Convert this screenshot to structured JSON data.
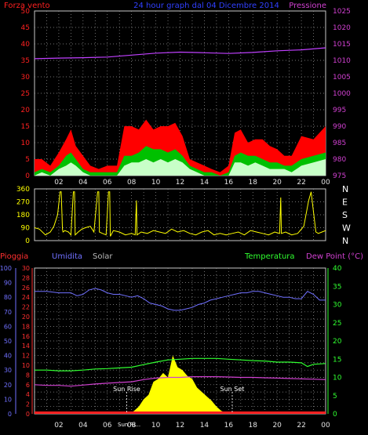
{
  "header": {
    "left_title": "Forza vento",
    "center_title": "24 hour graph dal 04 Dicembre 2014",
    "right_title": "Pressione"
  },
  "colors": {
    "background": "#000000",
    "grid": "#9a9a9a",
    "wind_axis": "#ff2020",
    "pressure_axis": "#d040d0",
    "wind_gust": "#ff0000",
    "wind_avg": "#00c000",
    "wind_min": "#c8ffc8",
    "pressure": "#c040ff",
    "direction": "#ffff00",
    "rain": "#ff3030",
    "humidity": "#7070ff",
    "solar": "#ffff00",
    "temperature": "#30ff30",
    "dewpoint": "#d040d0",
    "label_solar": "#b8b8b8",
    "label_temp": "#30ff30"
  },
  "chart_data": [
    {
      "type": "area",
      "title": "24 hour graph dal 04 Dicembre 2014",
      "x_ticks": [
        "02",
        "04",
        "06",
        "08",
        "10",
        "12",
        "14",
        "16",
        "18",
        "20",
        "22",
        "00"
      ],
      "y_left": {
        "label": "Forza vento",
        "range": [
          0,
          50
        ],
        "ticks": [
          "0",
          "5",
          "10",
          "15",
          "20",
          "25",
          "30",
          "35",
          "40",
          "45",
          "50"
        ]
      },
      "y_right": {
        "label": "Pressione",
        "range": [
          975,
          1025
        ],
        "ticks": [
          "975",
          "980",
          "985",
          "990",
          "995",
          "1000",
          "1005",
          "1010",
          "1015",
          "1020",
          "1025"
        ]
      },
      "series": [
        {
          "name": "Pressione",
          "x": [
            0,
            2,
            4,
            6,
            8,
            10,
            12,
            14,
            16,
            18,
            20,
            22,
            24
          ],
          "values": [
            1010.5,
            1010.7,
            1010.8,
            1011.0,
            1011.6,
            1012.2,
            1012.5,
            1012.3,
            1012.1,
            1012.4,
            1012.9,
            1013.2,
            1013.8
          ]
        },
        {
          "values": [
            5,
            5,
            3,
            7,
            11,
            14,
            9,
            6,
            3,
            2,
            3,
            3,
            15,
            15,
            14,
            17,
            14,
            15,
            15,
            16,
            12,
            5,
            4,
            3,
            2,
            1,
            3,
            13,
            14,
            10,
            11,
            11,
            9,
            8,
            6,
            6,
            12,
            11,
            15
          ]
        },
        {
          "values": [
            1,
            2,
            1,
            3,
            6,
            7,
            5,
            2,
            1,
            1,
            1,
            1,
            6,
            6,
            7,
            9,
            8,
            8,
            7,
            8,
            6,
            3,
            2,
            1,
            1,
            0,
            1,
            6,
            7,
            6,
            6,
            5,
            4,
            4,
            3,
            3,
            5,
            6,
            7
          ]
        },
        {
          "values": [
            0,
            1,
            0,
            2,
            3,
            4,
            3,
            1,
            0,
            0,
            0,
            0,
            3,
            4,
            4,
            5,
            4,
            5,
            4,
            5,
            4,
            2,
            1,
            0,
            0,
            0,
            0,
            4,
            4,
            3,
            4,
            3,
            2,
            2,
            2,
            1,
            3,
            4,
            5
          ]
        }
      ],
      "series_x": [
        0,
        0.6,
        1.3,
        2.0,
        2.6,
        3.0,
        3.4,
        4.0,
        4.6,
        5.3,
        6.0,
        6.8,
        7.4,
        8.0,
        8.6,
        9.2,
        9.8,
        10.4,
        11.0,
        11.6,
        12.2,
        12.8,
        13.4,
        14.0,
        14.6,
        15.3,
        16.0,
        16.5,
        17.0,
        17.6,
        18.2,
        18.8,
        19.4,
        20.0,
        20.6,
        21.2,
        22.0,
        23.0,
        24.0
      ]
    },
    {
      "type": "line",
      "x_ticks": [
        "02",
        "04",
        "06",
        "08",
        "10",
        "12",
        "14",
        "16",
        "18",
        "20",
        "22",
        "00"
      ],
      "y_left": {
        "range": [
          0,
          360
        ],
        "ticks": [
          "0",
          "90",
          "180",
          "270",
          "360"
        ]
      },
      "y_right": {
        "ticks": [
          "N",
          "W",
          "S",
          "E",
          "N"
        ]
      },
      "series": [
        {
          "x": [
            0,
            0.4,
            0.9,
            1.3,
            1.6,
            1.9,
            2.1,
            2.2,
            2.3,
            2.35,
            2.5,
            2.8,
            3.0,
            3.2,
            3.3,
            3.35,
            3.6,
            3.9,
            4.2,
            4.6,
            4.9,
            5.2,
            5.3,
            5.35,
            5.6,
            5.9,
            6.1,
            6.2,
            6.25,
            6.5,
            7.0,
            7.5,
            8.0,
            8.3,
            8.4,
            8.45,
            8.8,
            9.3,
            9.8,
            10.3,
            10.8,
            11.3,
            11.8,
            12.3,
            12.8,
            13.3,
            13.8,
            14.3,
            14.8,
            15.3,
            15.8,
            16.3,
            16.8,
            17.3,
            17.8,
            18.3,
            18.8,
            19.3,
            19.8,
            20.2,
            20.3,
            20.35,
            20.7,
            21.2,
            21.7,
            22.2,
            22.6,
            22.8,
            23.0,
            23.2,
            23.4,
            23.7,
            24.0
          ],
          "values": [
            90,
            80,
            40,
            60,
            100,
            180,
            340,
            340,
            80,
            60,
            70,
            60,
            40,
            340,
            340,
            40,
            60,
            80,
            90,
            100,
            60,
            340,
            340,
            60,
            50,
            40,
            340,
            340,
            30,
            70,
            60,
            40,
            50,
            40,
            280,
            40,
            60,
            50,
            70,
            60,
            50,
            80,
            60,
            70,
            50,
            40,
            60,
            70,
            40,
            50,
            40,
            50,
            60,
            40,
            70,
            60,
            50,
            40,
            60,
            50,
            300,
            50,
            60,
            40,
            50,
            100,
            280,
            340,
            200,
            60,
            50,
            60,
            70
          ]
        }
      ]
    },
    {
      "type": "line",
      "x_ticks": [
        "02",
        "04",
        "06",
        "08",
        "10",
        "12",
        "14",
        "16",
        "18",
        "20",
        "22",
        "00"
      ],
      "axes": {
        "pioggia": {
          "label": "Pioggia",
          "ticks": [
            "0",
            "2",
            "4",
            "6",
            "8",
            "10",
            "12",
            "14",
            "16",
            "18",
            "20",
            "22",
            "24",
            "26",
            "28",
            "30"
          ]
        },
        "umidita": {
          "label": "Umidita",
          "ticks": [
            "0",
            "10",
            "20",
            "30",
            "40",
            "50",
            "60",
            "70",
            "80",
            "90",
            "100"
          ]
        },
        "solar": {
          "label": "Solar"
        },
        "temperatura": {
          "label": "Temperatura"
        },
        "dew": {
          "label": "Dew Point (°C)",
          "ticks": [
            "0",
            "5",
            "10",
            "15",
            "20",
            "25",
            "30",
            "35",
            "40"
          ]
        }
      },
      "series": [
        {
          "name": "Umidita",
          "x": [
            0,
            1,
            2,
            3,
            3.5,
            4,
            4.5,
            5,
            5.5,
            6,
            6.5,
            7,
            7.5,
            8,
            8.5,
            9,
            9.5,
            10,
            10.5,
            11,
            11.5,
            12,
            12.5,
            13,
            13.5,
            14,
            14.5,
            15,
            15.5,
            16,
            16.5,
            17,
            17.5,
            18,
            18.5,
            19,
            19.5,
            20,
            20.5,
            21,
            21.5,
            22,
            22.5,
            23,
            23.5,
            24
          ],
          "values": [
            84,
            84,
            83,
            83,
            81,
            82,
            85,
            86,
            85,
            83,
            82,
            82,
            81,
            80,
            81,
            79,
            76,
            75,
            74,
            72,
            71,
            71,
            72,
            73,
            75,
            76,
            78,
            79,
            80,
            81,
            82,
            83,
            83,
            84,
            84,
            83,
            82,
            81,
            80,
            80,
            79,
            79,
            84,
            82,
            78,
            78
          ]
        },
        {
          "name": "Temperatura",
          "x": [
            0,
            1,
            2,
            3,
            4,
            5,
            6,
            7,
            8,
            9,
            10,
            11,
            12,
            13,
            14,
            15,
            16,
            17,
            18,
            19,
            20,
            21,
            22,
            22.5,
            23,
            24
          ],
          "values": [
            12,
            12,
            11.8,
            11.8,
            12,
            12.3,
            12.4,
            12.6,
            12.8,
            13.5,
            14.2,
            14.8,
            15.0,
            15.2,
            15.2,
            15.2,
            15.0,
            14.8,
            14.6,
            14.5,
            14.2,
            14.2,
            14.0,
            13.0,
            13.6,
            13.8
          ]
        },
        {
          "name": "Dew Point",
          "x": [
            0,
            1,
            2,
            3,
            4,
            5,
            6,
            7,
            8,
            9,
            10,
            11,
            12,
            13,
            14,
            15,
            16,
            17,
            18,
            19,
            20,
            21,
            22,
            23,
            24
          ],
          "values": [
            8.0,
            7.8,
            7.8,
            7.6,
            7.9,
            8.2,
            8.4,
            8.6,
            8.8,
            9.4,
            9.8,
            10.0,
            10.0,
            10.2,
            10.2,
            10.2,
            10.1,
            10.0,
            10.0,
            9.9,
            9.8,
            9.7,
            9.6,
            9.5,
            9.4
          ]
        },
        {
          "name": "Solar",
          "x": [
            0,
            7.8,
            8.2,
            8.6,
            9.0,
            9.4,
            9.8,
            10.2,
            10.6,
            11.0,
            11.4,
            11.8,
            12.2,
            12.6,
            13.0,
            13.4,
            13.8,
            14.2,
            14.6,
            15.0,
            15.4,
            16.0,
            24
          ],
          "values": [
            0,
            0,
            2,
            5,
            10,
            13,
            22,
            24,
            28,
            25,
            40,
            32,
            30,
            26,
            24,
            18,
            15,
            12,
            9,
            5,
            2,
            0,
            0
          ]
        }
      ],
      "annotations": [
        {
          "text": "Sun Rise",
          "x": 7.6
        },
        {
          "text": "Sun Set",
          "x": 16.3
        },
        {
          "text": "Sun Ri..."
        }
      ]
    }
  ]
}
